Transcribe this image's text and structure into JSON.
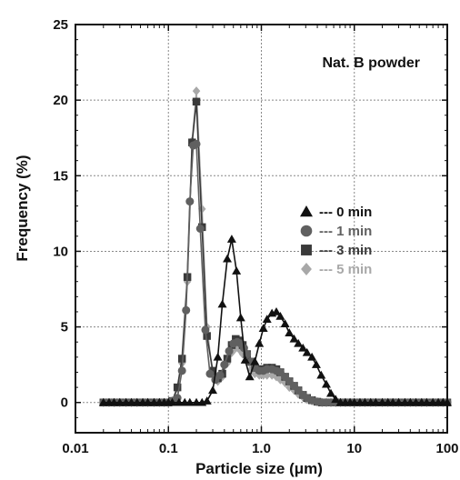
{
  "chart_data": {
    "type": "line",
    "title": "",
    "annotation": "Nat. B powder",
    "xlabel": "Particle size (μm)",
    "ylabel": "Frequency (%)",
    "x_scale": "log",
    "xlim": [
      0.01,
      100
    ],
    "ylim": [
      -2,
      25
    ],
    "x_ticks": [
      0.01,
      0.1,
      1.0,
      10,
      100
    ],
    "x_tick_labels": [
      "0.01",
      "0.1",
      "1.0",
      "10",
      "100"
    ],
    "y_ticks": [
      0,
      5,
      10,
      15,
      20,
      25
    ],
    "y_tick_labels": [
      "0",
      "5",
      "10",
      "15",
      "20",
      "25"
    ],
    "grid": true,
    "legend_position": "right",
    "series": [
      {
        "name": "--- 0 min",
        "color": "#111111",
        "marker": "triangle",
        "x": [
          0.02,
          0.023,
          0.026,
          0.03,
          0.035,
          0.04,
          0.046,
          0.053,
          0.06,
          0.07,
          0.08,
          0.09,
          0.1,
          0.11,
          0.13,
          0.15,
          0.17,
          0.2,
          0.23,
          0.26,
          0.3,
          0.34,
          0.38,
          0.43,
          0.48,
          0.54,
          0.6,
          0.67,
          0.75,
          0.85,
          0.95,
          1.05,
          1.15,
          1.3,
          1.45,
          1.6,
          1.8,
          2.0,
          2.25,
          2.5,
          2.8,
          3.1,
          3.5,
          3.9,
          4.4,
          5.0,
          5.6,
          6.3,
          7.1,
          8.0,
          9.0,
          10,
          11.5,
          13,
          15,
          17,
          20,
          23,
          26,
          30,
          35,
          40,
          46,
          53,
          60,
          70,
          80,
          90,
          100
        ],
        "y": [
          0,
          0,
          0,
          0,
          0,
          0,
          0,
          0,
          0,
          0,
          0,
          0,
          0,
          0,
          0,
          0,
          0,
          0,
          0,
          0.1,
          0.8,
          3.0,
          6.5,
          9.5,
          10.8,
          8.7,
          5.6,
          2.8,
          1.7,
          2.7,
          3.9,
          4.9,
          5.5,
          5.9,
          6.0,
          5.7,
          5.2,
          4.6,
          4.2,
          3.9,
          3.6,
          3.3,
          3.0,
          2.5,
          1.8,
          1.2,
          0.6,
          0.2,
          0,
          0,
          0,
          0,
          0,
          0,
          0,
          0,
          0,
          0,
          0,
          0,
          0,
          0,
          0,
          0,
          0,
          0,
          0,
          0,
          0
        ]
      },
      {
        "name": "--- 1 min",
        "color": "#606060",
        "marker": "circle",
        "x": [
          0.02,
          0.023,
          0.026,
          0.03,
          0.035,
          0.04,
          0.046,
          0.053,
          0.06,
          0.07,
          0.08,
          0.09,
          0.1,
          0.11,
          0.125,
          0.14,
          0.155,
          0.17,
          0.185,
          0.2,
          0.22,
          0.25,
          0.28,
          0.32,
          0.36,
          0.4,
          0.45,
          0.5,
          0.55,
          0.6,
          0.65,
          0.7,
          0.78,
          0.85,
          0.95,
          1.05,
          1.15,
          1.3,
          1.45,
          1.6,
          1.8,
          2.0,
          2.25,
          2.5,
          2.8,
          3.1,
          3.5,
          4.0,
          4.5,
          5.0,
          5.6,
          6.3,
          7.1,
          8.0,
          9.0,
          10,
          11.5,
          13,
          15,
          17,
          20,
          23,
          26,
          30,
          35,
          40,
          46,
          53,
          60,
          70,
          80,
          90,
          100
        ],
        "y": [
          0,
          0,
          0,
          0,
          0,
          0,
          0,
          0,
          0,
          0,
          0,
          0,
          0,
          0.1,
          0.3,
          2.1,
          6.1,
          13.3,
          17.0,
          17.1,
          11.5,
          4.8,
          1.9,
          1.5,
          1.8,
          2.5,
          3.4,
          3.9,
          4.0,
          3.9,
          3.6,
          3.2,
          2.7,
          2.3,
          2.1,
          2.1,
          2.2,
          2.2,
          2.1,
          2.0,
          1.7,
          1.4,
          1.1,
          0.8,
          0.5,
          0.3,
          0.15,
          0.05,
          0,
          0,
          0,
          0,
          0,
          0,
          0,
          0,
          0,
          0,
          0,
          0,
          0,
          0,
          0,
          0,
          0,
          0,
          0,
          0,
          0,
          0,
          0,
          0,
          0
        ]
      },
      {
        "name": "--- 3 min",
        "color": "#3a3a3a",
        "marker": "square",
        "x": [
          0.02,
          0.023,
          0.026,
          0.03,
          0.035,
          0.04,
          0.046,
          0.053,
          0.06,
          0.07,
          0.08,
          0.09,
          0.1,
          0.11,
          0.125,
          0.14,
          0.16,
          0.18,
          0.2,
          0.23,
          0.26,
          0.3,
          0.34,
          0.38,
          0.43,
          0.48,
          0.53,
          0.58,
          0.63,
          0.7,
          0.78,
          0.85,
          0.95,
          1.05,
          1.15,
          1.3,
          1.45,
          1.6,
          1.8,
          2.0,
          2.25,
          2.5,
          2.8,
          3.1,
          3.5,
          4.0,
          4.5,
          5.0,
          5.6,
          6.3,
          7.1,
          8.0,
          9.0,
          10,
          11.5,
          13,
          15,
          17,
          20,
          23,
          26,
          30,
          35,
          40,
          46,
          53,
          60,
          70,
          80,
          90,
          100
        ],
        "y": [
          0,
          0,
          0,
          0,
          0,
          0,
          0,
          0,
          0,
          0,
          0,
          0,
          0,
          0.1,
          1.0,
          2.9,
          8.3,
          17.2,
          19.9,
          11.6,
          4.4,
          2.1,
          1.6,
          1.9,
          2.9,
          3.8,
          4.2,
          4.1,
          3.8,
          3.2,
          2.7,
          2.3,
          2.2,
          2.2,
          2.3,
          2.3,
          2.2,
          2.0,
          1.7,
          1.4,
          1.1,
          0.8,
          0.5,
          0.3,
          0.15,
          0.05,
          0,
          0,
          0,
          0,
          0,
          0,
          0,
          0,
          0,
          0,
          0,
          0,
          0,
          0,
          0,
          0,
          0,
          0,
          0,
          0,
          0,
          0,
          0,
          0,
          0
        ]
      },
      {
        "name": "--- 5 min",
        "color": "#a8a8a8",
        "marker": "diamond",
        "x": [
          0.02,
          0.023,
          0.026,
          0.03,
          0.035,
          0.04,
          0.046,
          0.053,
          0.06,
          0.07,
          0.08,
          0.09,
          0.1,
          0.11,
          0.125,
          0.14,
          0.16,
          0.18,
          0.2,
          0.23,
          0.26,
          0.3,
          0.34,
          0.38,
          0.43,
          0.48,
          0.53,
          0.58,
          0.63,
          0.7,
          0.78,
          0.85,
          0.95,
          1.05,
          1.15,
          1.3,
          1.45,
          1.6,
          1.8,
          2.0,
          2.25,
          2.5,
          2.8,
          3.1,
          3.5,
          4.0,
          4.5,
          5.0,
          5.6,
          6.3,
          7.1,
          8.0,
          9.0,
          10,
          11.5,
          13,
          15,
          17,
          20,
          23,
          26,
          30,
          35,
          40,
          46,
          53,
          60,
          70,
          80,
          90,
          100
        ],
        "y": [
          0,
          0,
          0,
          0,
          0,
          0,
          0,
          0,
          0,
          0,
          0,
          0,
          0,
          0.1,
          0.9,
          2.6,
          8.0,
          17.3,
          20.6,
          12.8,
          5.0,
          1.8,
          1.4,
          1.7,
          2.6,
          3.3,
          3.6,
          3.5,
          3.2,
          2.7,
          2.2,
          1.9,
          1.8,
          1.8,
          1.8,
          1.8,
          1.7,
          1.5,
          1.3,
          1.0,
          0.8,
          0.55,
          0.35,
          0.2,
          0.1,
          0.05,
          0,
          0,
          0,
          0,
          0,
          0,
          0,
          0,
          0,
          0,
          0,
          0,
          0,
          0,
          0,
          0,
          0,
          0,
          0,
          0,
          0,
          0,
          0,
          0,
          0
        ]
      }
    ]
  }
}
